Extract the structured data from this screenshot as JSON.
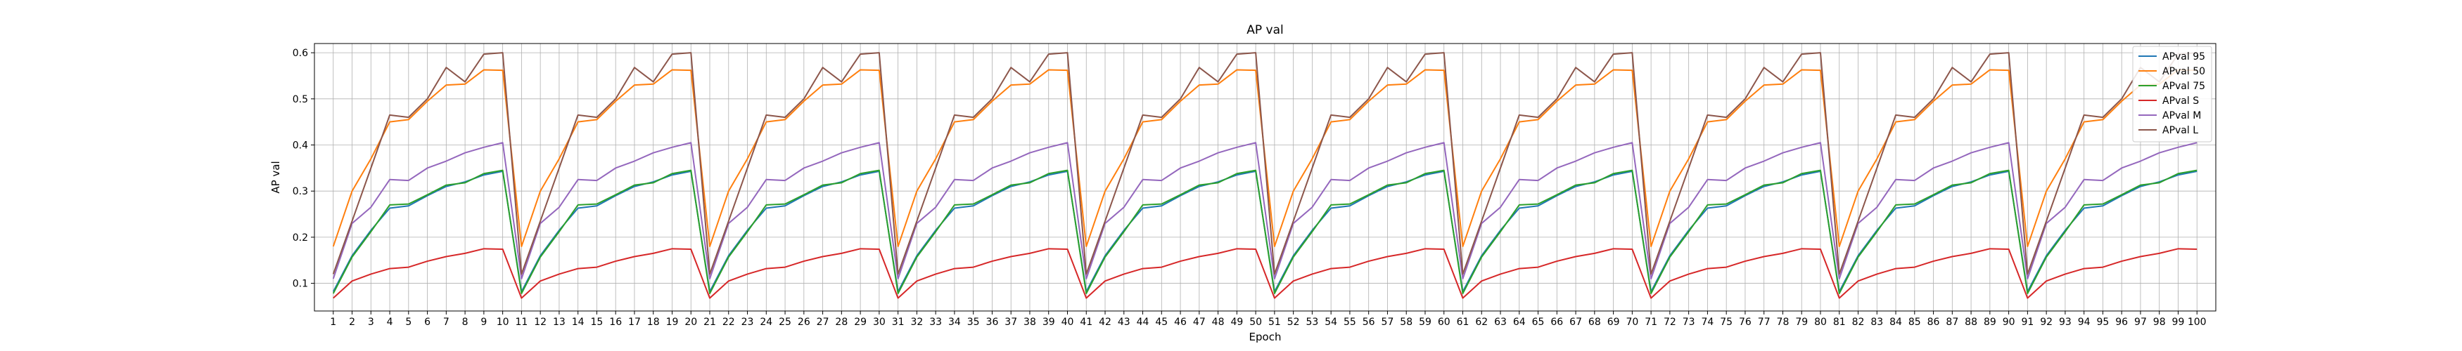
{
  "chart_data": {
    "type": "line",
    "title": "AP val",
    "xlabel": "Epoch",
    "ylabel": "AP val",
    "xlim": [
      0,
      101
    ],
    "ylim": [
      0.04,
      0.62
    ],
    "yticks": [
      0.1,
      0.2,
      0.3,
      0.4,
      0.5,
      0.6
    ],
    "grid": true,
    "legend_position": "top-right",
    "x": [
      1,
      2,
      3,
      4,
      5,
      6,
      7,
      8,
      9,
      10,
      11,
      12,
      13,
      14,
      15,
      16,
      17,
      18,
      19,
      20,
      21,
      22,
      23,
      24,
      25,
      26,
      27,
      28,
      29,
      30,
      31,
      32,
      33,
      34,
      35,
      36,
      37,
      38,
      39,
      40,
      41,
      42,
      43,
      44,
      45,
      46,
      47,
      48,
      49,
      50,
      51,
      52,
      53,
      54,
      55,
      56,
      57,
      58,
      59,
      60,
      61,
      62,
      63,
      64,
      65,
      66,
      67,
      68,
      69,
      70,
      71,
      72,
      73,
      74,
      75,
      76,
      77,
      78,
      79,
      80,
      81,
      82,
      83,
      84,
      85,
      86,
      87,
      88,
      89,
      90,
      91,
      92,
      93,
      94,
      95,
      96,
      97,
      98,
      99,
      100
    ],
    "series": [
      {
        "name": "APval 95",
        "color": "#1f77b4",
        "cycle": [
          0.082,
          0.16,
          0.215,
          0.263,
          0.268,
          0.29,
          0.31,
          0.32,
          0.335,
          0.343
        ]
      },
      {
        "name": "APval 50",
        "color": "#ff7f0e",
        "cycle": [
          0.18,
          0.3,
          0.37,
          0.45,
          0.455,
          0.495,
          0.53,
          0.532,
          0.563,
          0.562
        ]
      },
      {
        "name": "APval 75",
        "color": "#2ca02c",
        "cycle": [
          0.078,
          0.157,
          0.212,
          0.27,
          0.272,
          0.292,
          0.313,
          0.318,
          0.338,
          0.345
        ]
      },
      {
        "name": "APval S",
        "color": "#d62728",
        "cycle": [
          0.068,
          0.105,
          0.12,
          0.132,
          0.135,
          0.148,
          0.158,
          0.165,
          0.175,
          0.174
        ]
      },
      {
        "name": "APval M",
        "color": "#9467bd",
        "cycle": [
          0.11,
          0.23,
          0.265,
          0.325,
          0.323,
          0.35,
          0.365,
          0.383,
          0.395,
          0.405
        ]
      },
      {
        "name": "APval L",
        "color": "#8c564b",
        "cycle": [
          0.12,
          0.235,
          0.35,
          0.465,
          0.46,
          0.5,
          0.568,
          0.537,
          0.597,
          0.6
        ]
      }
    ]
  }
}
